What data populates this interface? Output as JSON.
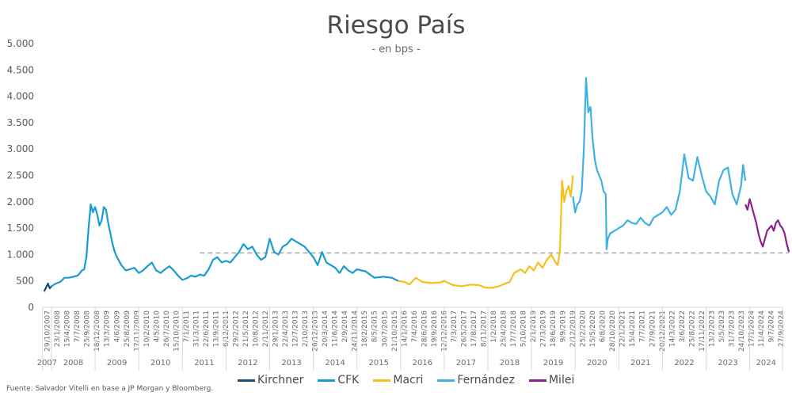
{
  "header": {
    "title": "Riesgo País",
    "subtitle": "- en bps -"
  },
  "source": "Fuente: Salvador Vitelli en base a JP Morgan y Bloomberg.",
  "legend": [
    {
      "label": "Kirchner",
      "color": "#1f4e79"
    },
    {
      "label": "CFK",
      "color": "#1a9bd1"
    },
    {
      "label": "Macri",
      "color": "#f5c01c"
    },
    {
      "label": "Fernández",
      "color": "#3fb1e3"
    },
    {
      "label": "Milei",
      "color": "#8e1f8e"
    }
  ],
  "chart_data": {
    "type": "line",
    "title": "Riesgo País",
    "subtitle": "- en bps -",
    "xlabel": "",
    "ylabel": "",
    "ylim": [
      0,
      5000
    ],
    "yticks": [
      "0",
      "500",
      "1.000",
      "1.500",
      "2.000",
      "2.500",
      "3.000",
      "3.500",
      "4.000",
      "4.500",
      "5.000"
    ],
    "grid": false,
    "legend_position": "bottom",
    "reference_line": {
      "value": 1030,
      "style": "dashed",
      "color": "#a6a6a6",
      "x_start": 2011.4,
      "x_end": 2024.9
    },
    "x_date_ticks": [
      "29/10/2007",
      "23/1/2008",
      "15/4/2008",
      "7/7/2008",
      "25/9/2008",
      "18/12/2008",
      "13/3/2009",
      "4/6/2009",
      "25/8/2009",
      "17/11/2009",
      "10/2/2010",
      "4/5/2010",
      "26/7/2010",
      "15/10/2010",
      "7/1/2011",
      "31/3/2011",
      "22/6/2011",
      "13/9/2011",
      "6/12/2011",
      "29/2/2012",
      "21/5/2012",
      "10/8/2012",
      "2/11/2012",
      "29/1/2013",
      "22/4/2013",
      "12/7/2013",
      "2/10/2013",
      "26/12/2013",
      "20/3/2014",
      "11/6/2014",
      "2/9/2014",
      "24/11/2014",
      "18/2/2015",
      "8/5/2015",
      "30/7/2015",
      "21/10/2015",
      "14/1/2016",
      "7/4/2016",
      "28/6/2016",
      "19/9/2016",
      "12/12/2016",
      "7/3/2017",
      "26/5/2017",
      "17/8/2017",
      "8/11/2017",
      "1/2/2018",
      "25/4/2018",
      "17/7/2018",
      "5/10/2018",
      "2/1/2019",
      "27/3/2019",
      "18/6/2019",
      "9/9/2019",
      "2/12/2019",
      "25/2/2020",
      "15/5/2020",
      "6/8/2020",
      "28/10/2020",
      "22/1/2021",
      "15/4/2021",
      "7/7/2021",
      "27/9/2021",
      "20/12/2021",
      "14/3/2022",
      "3/6/2022",
      "25/8/2022",
      "17/11/2022",
      "13/2/2023",
      "5/5/2023",
      "31/7/2023",
      "24/10/2023",
      "17/1/2024",
      "11/4/2024",
      "9/7/2024",
      "27/9/2024"
    ],
    "x_year_labels": [
      "2007",
      "2008",
      "2009",
      "2010",
      "2011",
      "2012",
      "2013",
      "2014",
      "2015",
      "2016",
      "2017",
      "2018",
      "2019",
      "2020",
      "2021",
      "2022",
      "2023",
      "2024"
    ],
    "series": [
      {
        "name": "Kirchner",
        "color": "#1f4e79",
        "x": [
          2007.83,
          2007.88,
          2007.92,
          2007.96,
          2008.0
        ],
        "y": [
          300,
          380,
          450,
          360,
          400
        ]
      },
      {
        "name": "CFK",
        "color": "#1a9bd1",
        "x": [
          2008.0,
          2008.1,
          2008.2,
          2008.3,
          2008.4,
          2008.5,
          2008.6,
          2008.7,
          2008.75,
          2008.8,
          2008.85,
          2008.9,
          2008.95,
          2009.0,
          2009.05,
          2009.1,
          2009.15,
          2009.2,
          2009.25,
          2009.3,
          2009.35,
          2009.4,
          2009.45,
          2009.5,
          2009.6,
          2009.7,
          2009.8,
          2009.9,
          2010.0,
          2010.1,
          2010.2,
          2010.3,
          2010.4,
          2010.5,
          2010.6,
          2010.7,
          2010.8,
          2010.9,
          2011.0,
          2011.1,
          2011.2,
          2011.3,
          2011.4,
          2011.5,
          2011.6,
          2011.7,
          2011.8,
          2011.9,
          2012.0,
          2012.1,
          2012.2,
          2012.3,
          2012.4,
          2012.5,
          2012.6,
          2012.7,
          2012.8,
          2012.9,
          2013.0,
          2013.1,
          2013.2,
          2013.3,
          2013.4,
          2013.5,
          2013.6,
          2013.7,
          2013.8,
          2013.9,
          2014.0,
          2014.1,
          2014.2,
          2014.3,
          2014.4,
          2014.5,
          2014.6,
          2014.7,
          2014.8,
          2014.9,
          2015.0,
          2015.2,
          2015.4,
          2015.6,
          2015.8,
          2015.95
        ],
        "y": [
          400,
          450,
          480,
          560,
          560,
          580,
          600,
          700,
          720,
          950,
          1500,
          1950,
          1800,
          1900,
          1750,
          1550,
          1650,
          1900,
          1850,
          1600,
          1400,
          1200,
          1050,
          950,
          800,
          700,
          720,
          750,
          650,
          700,
          780,
          850,
          700,
          650,
          720,
          780,
          700,
          600,
          520,
          550,
          600,
          580,
          620,
          600,
          720,
          900,
          950,
          850,
          880,
          850,
          950,
          1050,
          1200,
          1100,
          1150,
          1000,
          900,
          950,
          1300,
          1050,
          1000,
          1150,
          1200,
          1300,
          1250,
          1200,
          1150,
          1050,
          950,
          800,
          1050,
          850,
          800,
          750,
          650,
          780,
          700,
          650,
          720,
          680,
          560,
          580,
          560,
          500
        ]
      },
      {
        "name": "Macri",
        "color": "#f5c01c",
        "x": [
          2015.95,
          2016.1,
          2016.2,
          2016.35,
          2016.5,
          2016.7,
          2016.9,
          2017.0,
          2017.2,
          2017.4,
          2017.6,
          2017.8,
          2017.95,
          2018.1,
          2018.25,
          2018.4,
          2018.5,
          2018.6,
          2018.75,
          2018.85,
          2018.95,
          2019.05,
          2019.15,
          2019.25,
          2019.35,
          2019.45,
          2019.55,
          2019.6,
          2019.65,
          2019.7,
          2019.75,
          2019.8,
          2019.85,
          2019.9,
          2019.95
        ],
        "y": [
          500,
          480,
          430,
          560,
          480,
          460,
          470,
          500,
          420,
          400,
          430,
          420,
          370,
          370,
          400,
          450,
          480,
          650,
          720,
          650,
          780,
          700,
          850,
          750,
          900,
          1000,
          850,
          800,
          1050,
          2400,
          2000,
          2200,
          2300,
          2100,
          2500
        ]
      },
      {
        "name": "Fernández",
        "color": "#3fb1e3",
        "x": [
          2019.95,
          2020.0,
          2020.05,
          2020.1,
          2020.15,
          2020.2,
          2020.25,
          2020.3,
          2020.35,
          2020.4,
          2020.45,
          2020.5,
          2020.55,
          2020.6,
          2020.65,
          2020.7,
          2020.72,
          2020.75,
          2020.8,
          2020.9,
          2021.0,
          2021.1,
          2021.2,
          2021.3,
          2021.4,
          2021.5,
          2021.6,
          2021.7,
          2021.8,
          2021.9,
          2022.0,
          2022.1,
          2022.2,
          2022.3,
          2022.4,
          2022.5,
          2022.6,
          2022.7,
          2022.8,
          2022.9,
          2023.0,
          2023.1,
          2023.2,
          2023.3,
          2023.4,
          2023.5,
          2023.6,
          2023.7,
          2023.8,
          2023.85,
          2023.9
        ],
        "y": [
          2100,
          1800,
          1950,
          2000,
          2200,
          3000,
          4350,
          3700,
          3800,
          3200,
          2800,
          2600,
          2500,
          2400,
          2200,
          2150,
          1100,
          1300,
          1400,
          1450,
          1500,
          1550,
          1650,
          1600,
          1580,
          1700,
          1600,
          1550,
          1700,
          1750,
          1800,
          1900,
          1750,
          1850,
          2200,
          2900,
          2450,
          2400,
          2850,
          2500,
          2200,
          2100,
          1950,
          2400,
          2600,
          2650,
          2150,
          1950,
          2300,
          2700,
          2400
        ]
      },
      {
        "name": "Milei",
        "color": "#8e1f8e",
        "x": [
          2023.9,
          2023.95,
          2024.0,
          2024.05,
          2024.1,
          2024.15,
          2024.2,
          2024.25,
          2024.3,
          2024.35,
          2024.4,
          2024.45,
          2024.5,
          2024.55,
          2024.6,
          2024.65,
          2024.7,
          2024.75,
          2024.8,
          2024.85,
          2024.9
        ],
        "y": [
          1950,
          1850,
          2050,
          1900,
          1750,
          1600,
          1400,
          1250,
          1150,
          1300,
          1450,
          1500,
          1550,
          1450,
          1600,
          1650,
          1550,
          1500,
          1400,
          1200,
          1050
        ]
      }
    ]
  }
}
